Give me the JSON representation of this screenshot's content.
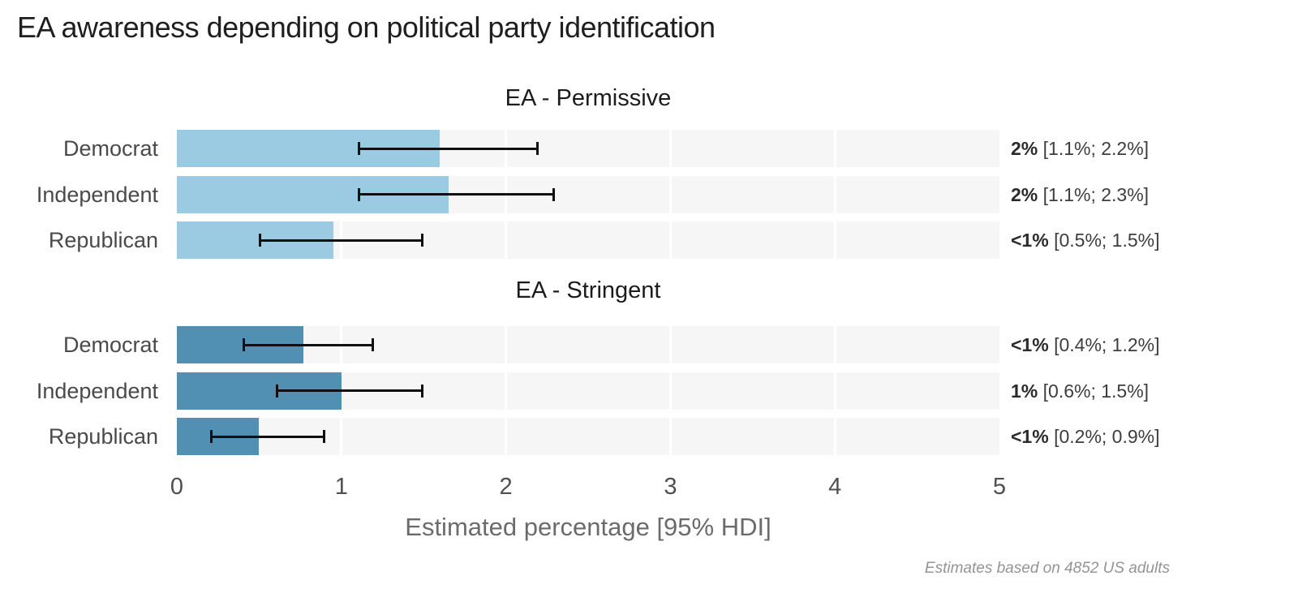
{
  "page_title": "EA awareness depending on political party identification",
  "colors": {
    "permissive_bar": "#9acbe3",
    "stringent_bar": "#5190b3",
    "track": "#f6f6f6",
    "gridline": "#ffffff",
    "error_bar": "#101010",
    "title_text": "#1f1f1f",
    "category_text": "#4a4a4a",
    "axis_label_text": "#6b6b6b",
    "caption_text": "#949494"
  },
  "chart_data": {
    "type": "bar",
    "orientation": "horizontal",
    "title": "EA awareness depending on political party identification",
    "xlabel": "Estimated percentage [95% HDI]",
    "xlim": [
      0,
      5
    ],
    "xticks": [
      "0",
      "1",
      "2",
      "3",
      "4",
      "5"
    ],
    "grid": "white vertical lines at integer values over light-gray row tracks",
    "legend": "none",
    "caption": "Estimates based on 4852 US adults",
    "categories": [
      "Democrat",
      "Independent",
      "Republican"
    ],
    "panels": [
      {
        "title": "EA - Permissive",
        "bar_color": "#9acbe3",
        "rows": [
          {
            "category": "Democrat",
            "estimate": 1.6,
            "hdi_lower": 1.1,
            "hdi_upper": 2.2,
            "estimate_label": "2%",
            "interval_label": "[1.1%; 2.2%]"
          },
          {
            "category": "Independent",
            "estimate": 1.65,
            "hdi_lower": 1.1,
            "hdi_upper": 2.3,
            "estimate_label": "2%",
            "interval_label": "[1.1%; 2.3%]"
          },
          {
            "category": "Republican",
            "estimate": 0.95,
            "hdi_lower": 0.5,
            "hdi_upper": 1.5,
            "estimate_label": "<1%",
            "interval_label": "[0.5%; 1.5%]"
          }
        ]
      },
      {
        "title": "EA - Stringent",
        "bar_color": "#5190b3",
        "rows": [
          {
            "category": "Democrat",
            "estimate": 0.77,
            "hdi_lower": 0.4,
            "hdi_upper": 1.2,
            "estimate_label": "<1%",
            "interval_label": "[0.4%; 1.2%]"
          },
          {
            "category": "Independent",
            "estimate": 1.0,
            "hdi_lower": 0.6,
            "hdi_upper": 1.5,
            "estimate_label": "1%",
            "interval_label": "[0.6%; 1.5%]"
          },
          {
            "category": "Republican",
            "estimate": 0.5,
            "hdi_lower": 0.2,
            "hdi_upper": 0.9,
            "estimate_label": "<1%",
            "interval_label": "[0.2%; 0.9%]"
          }
        ]
      }
    ]
  }
}
